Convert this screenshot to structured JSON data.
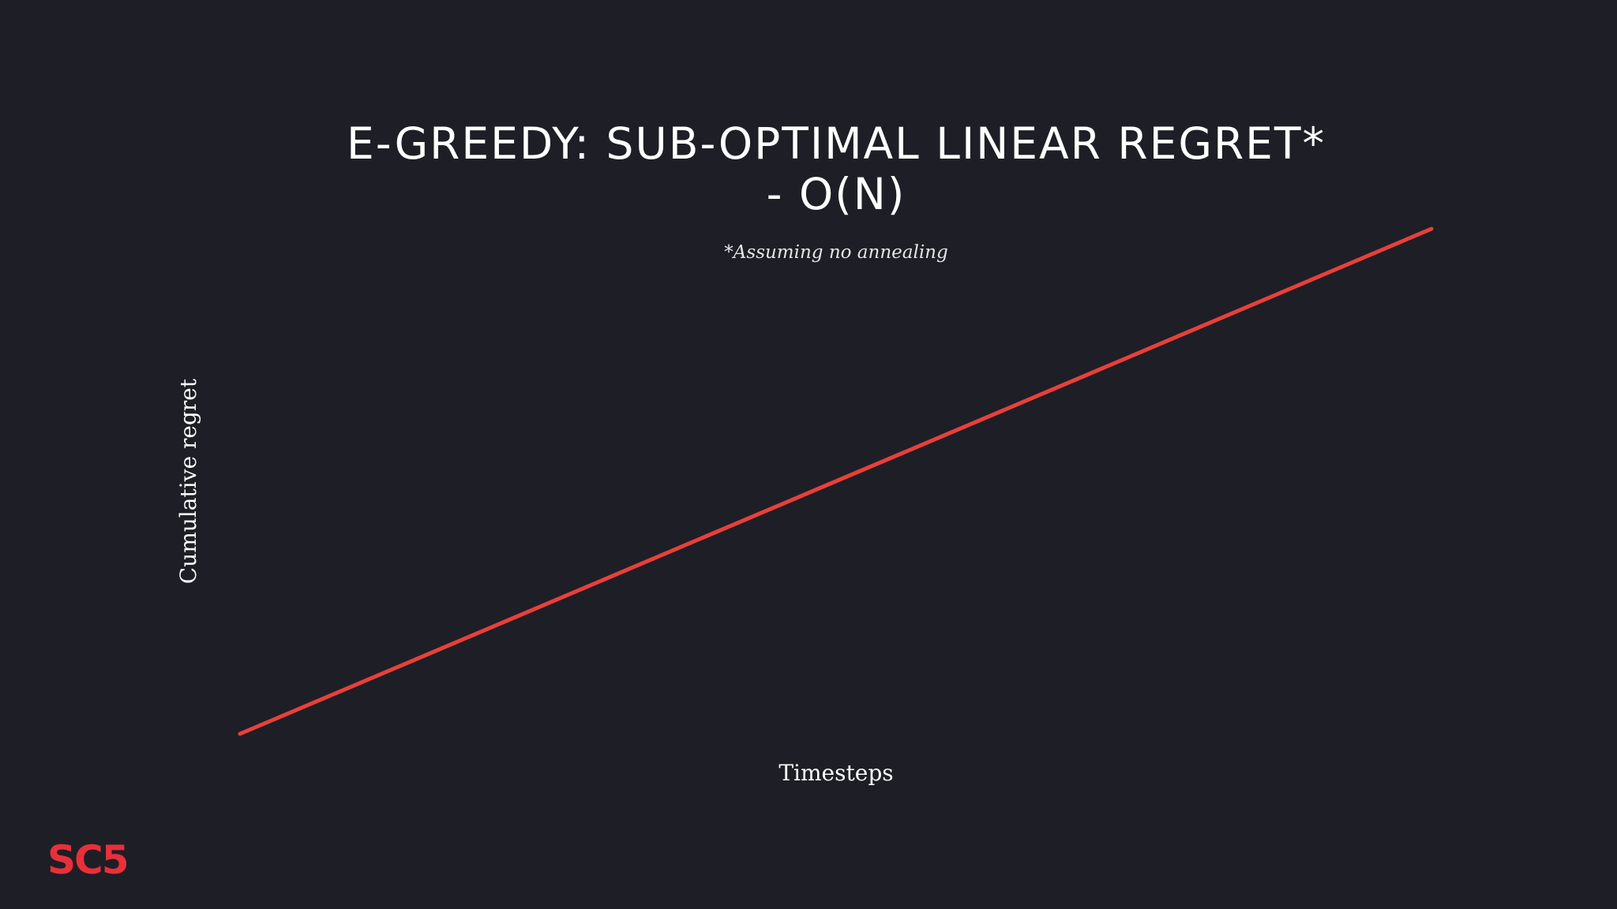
{
  "slide": {
    "title_line1": "E-GREEDY: SUB-OPTIMAL LINEAR REGRET*",
    "title_line2": "- O(N)",
    "subtitle": "*Assuming no annealing",
    "logo": "SC5"
  },
  "chart_data": {
    "type": "line",
    "title": "E-GREEDY: SUB-OPTIMAL LINEAR REGRET* - O(N)",
    "xlabel": "Timesteps",
    "ylabel": "Cumulative regret",
    "series": [
      {
        "x": [
          0,
          1
        ],
        "values": [
          0,
          1
        ],
        "color": "#e8403a"
      }
    ],
    "xlim": [
      0,
      1
    ],
    "ylim": [
      0,
      1
    ],
    "grid": false,
    "axes_visible": false
  }
}
